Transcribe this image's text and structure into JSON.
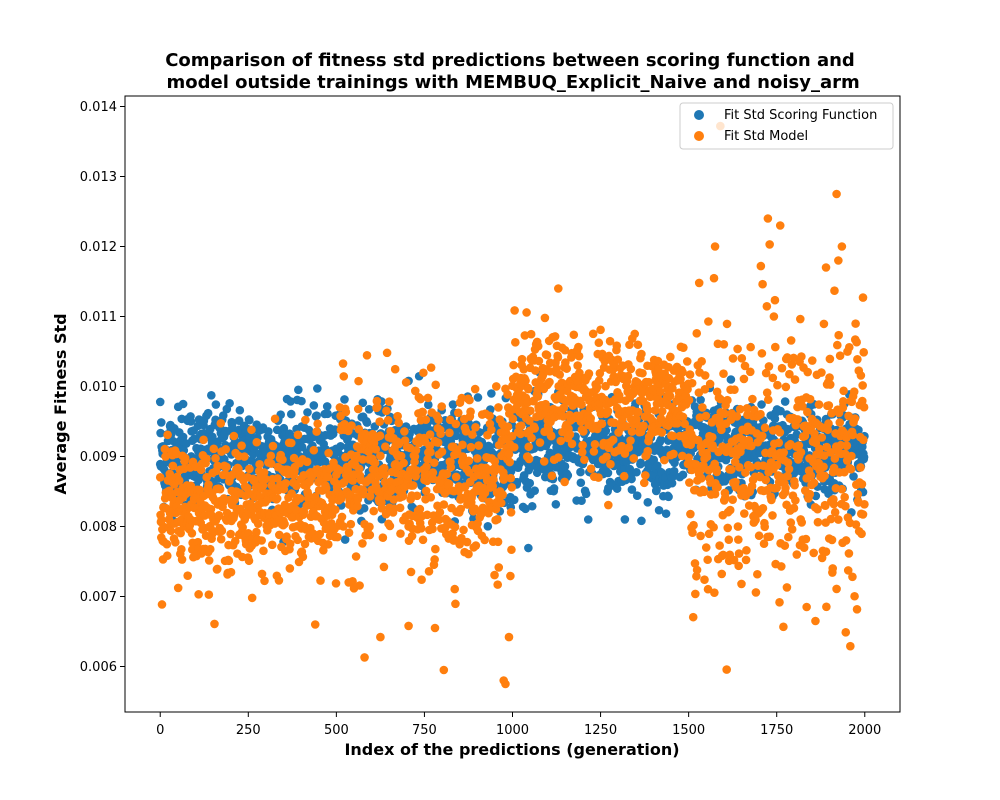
{
  "chart_data": {
    "type": "scatter",
    "title_line1": "Comparison of fitness std predictions between scoring function and",
    "title_line2": " model outside trainings with MEMBUQ_Explicit_Naive and noisy_arm",
    "xlabel": "Index of the predictions (generation)",
    "ylabel": "Average Fitness Std",
    "xlim": [
      -100,
      2100
    ],
    "ylim": [
      0.00535,
      0.01415
    ],
    "x_ticks": [
      0,
      250,
      500,
      750,
      1000,
      1250,
      1500,
      1750,
      2000
    ],
    "x_tick_labels": [
      "0",
      "250",
      "500",
      "750",
      "1000",
      "1250",
      "1500",
      "1750",
      "2000"
    ],
    "y_ticks": [
      0.006,
      0.007,
      0.008,
      0.009,
      0.01,
      0.011,
      0.012,
      0.013,
      0.014
    ],
    "y_tick_labels": [
      "0.006",
      "0.007",
      "0.008",
      "0.009",
      "0.010",
      "0.011",
      "0.012",
      "0.013",
      "0.014"
    ],
    "legend_position": "top-right",
    "grid": false,
    "n_points_per_series": 2000,
    "series": [
      {
        "name": "Fit Std Scoring Function",
        "color": "#1f77b4",
        "segments": [
          {
            "x_range": [
              0,
              1000
            ],
            "mean": 0.009,
            "spread": 0.00035
          },
          {
            "x_range": [
              1000,
              1500
            ],
            "mean": 0.0091,
            "spread": 0.00035
          },
          {
            "x_range": [
              1500,
              2000
            ],
            "mean": 0.0091,
            "spread": 0.0003
          }
        ],
        "outliers": [
          {
            "x": 0,
            "y": 0.00978
          },
          {
            "x": 65,
            "y": 0.00975
          },
          {
            "x": 360,
            "y": 0.00982
          },
          {
            "x": 705,
            "y": 0.01008
          },
          {
            "x": 940,
            "y": 0.0099
          },
          {
            "x": 1030,
            "y": 0.00828
          },
          {
            "x": 1215,
            "y": 0.0081
          },
          {
            "x": 1560,
            "y": 0.00998
          },
          {
            "x": 1620,
            "y": 0.0101
          },
          {
            "x": 1990,
            "y": 0.00852
          }
        ]
      },
      {
        "name": "Fit Std Model",
        "color": "#ff7f0e",
        "segments": [
          {
            "x_range": [
              0,
              500
            ],
            "mean": 0.0083,
            "spread": 0.00045
          },
          {
            "x_range": [
              500,
              1000
            ],
            "mean": 0.0087,
            "spread": 0.0006
          },
          {
            "x_range": [
              1000,
              1500
            ],
            "mean": 0.0098,
            "spread": 0.00045
          },
          {
            "x_range": [
              1500,
              2000
            ],
            "mean": 0.009,
            "spread": 0.0009
          }
        ],
        "outliers": [
          {
            "x": 580,
            "y": 0.00613
          },
          {
            "x": 805,
            "y": 0.00595
          },
          {
            "x": 975,
            "y": 0.0058
          },
          {
            "x": 980,
            "y": 0.00575
          },
          {
            "x": 990,
            "y": 0.00642
          },
          {
            "x": 625,
            "y": 0.00642
          },
          {
            "x": 705,
            "y": 0.00658
          },
          {
            "x": 780,
            "y": 0.00655
          },
          {
            "x": 440,
            "y": 0.0066
          },
          {
            "x": 1130,
            "y": 0.0114
          },
          {
            "x": 1590,
            "y": 0.01372
          },
          {
            "x": 1920,
            "y": 0.01275
          },
          {
            "x": 1725,
            "y": 0.0124
          },
          {
            "x": 1760,
            "y": 0.0123
          },
          {
            "x": 1575,
            "y": 0.012
          },
          {
            "x": 1730,
            "y": 0.01203
          },
          {
            "x": 1935,
            "y": 0.012
          },
          {
            "x": 1925,
            "y": 0.0118
          },
          {
            "x": 1705,
            "y": 0.01172
          },
          {
            "x": 1890,
            "y": 0.0117
          },
          {
            "x": 1860,
            "y": 0.00665
          },
          {
            "x": 1995,
            "y": 0.01127
          },
          {
            "x": 1530,
            "y": 0.01148
          },
          {
            "x": 1545,
            "y": 0.00724
          },
          {
            "x": 1650,
            "y": 0.00718
          },
          {
            "x": 1835,
            "y": 0.00685
          }
        ]
      }
    ]
  }
}
